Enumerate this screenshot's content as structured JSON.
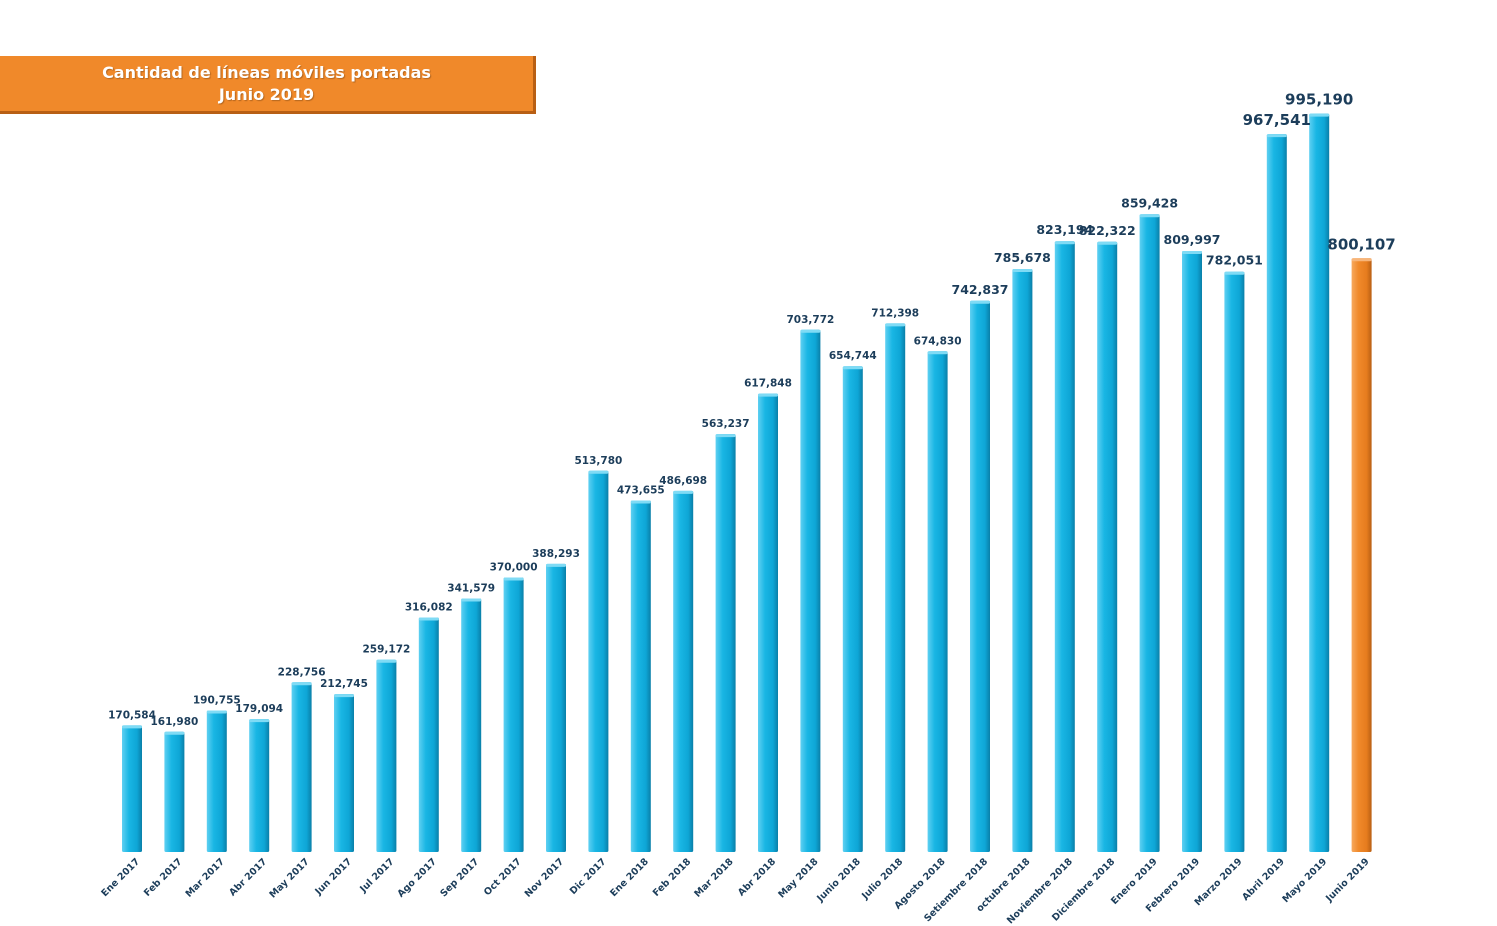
{
  "title": {
    "line1": "Cantidad de líneas móviles portadas",
    "line2": "Junio 2019"
  },
  "colors": {
    "bar": "#14b4e2",
    "bar_highlight": "#f0892a",
    "banner": "#f0892a",
    "label": "#1c3d5a"
  },
  "chart_data": {
    "type": "bar",
    "title": "Cantidad de líneas móviles portadas Junio 2019",
    "xlabel": "",
    "ylabel": "",
    "ylim": [
      0,
      1000000
    ],
    "grid": false,
    "categories": [
      "Ene 2017",
      "Feb 2017",
      "Mar 2017",
      "Abr 2017",
      "May 2017",
      "Jun 2017",
      "Jul 2017",
      "Ago 2017",
      "Sep 2017",
      "Oct 2017",
      "Nov 2017",
      "Dic 2017",
      "Ene 2018",
      "Feb 2018",
      "Mar 2018",
      "Abr 2018",
      "May 2018",
      "Junio 2018",
      "Julio 2018",
      "Agosto 2018",
      "Setiembre 2018",
      "octubre 2018",
      "Noviembre 2018",
      "Diciembre 2018",
      "Enero 2019",
      "Febrero 2019",
      "Marzo 2019",
      "Abril 2019",
      "Mayo 2019",
      "Junio 2019"
    ],
    "values": [
      170584,
      161980,
      190755,
      179094,
      228756,
      212745,
      259172,
      316082,
      341579,
      370000,
      388293,
      513780,
      473655,
      486698,
      563237,
      617848,
      703772,
      654744,
      712398,
      674830,
      742837,
      785678,
      823194,
      822322,
      859428,
      809997,
      782051,
      967541,
      995190,
      800107
    ],
    "value_labels": [
      "170,584",
      "161,980",
      "190,755",
      "179,094",
      "228,756",
      "212,745",
      "259,172",
      "316,082",
      "341,579",
      "370,000",
      "388,293",
      "513,780",
      "473,655",
      "486,698",
      "563,237",
      "617,848",
      "703,772",
      "654,744",
      "712,398",
      "674,830",
      "742,837",
      "785,678",
      "823,194",
      "822,322",
      "859,428",
      "809,997",
      "782,051",
      "967,541",
      "995,190",
      "800,107"
    ],
    "highlight_index": 29
  }
}
